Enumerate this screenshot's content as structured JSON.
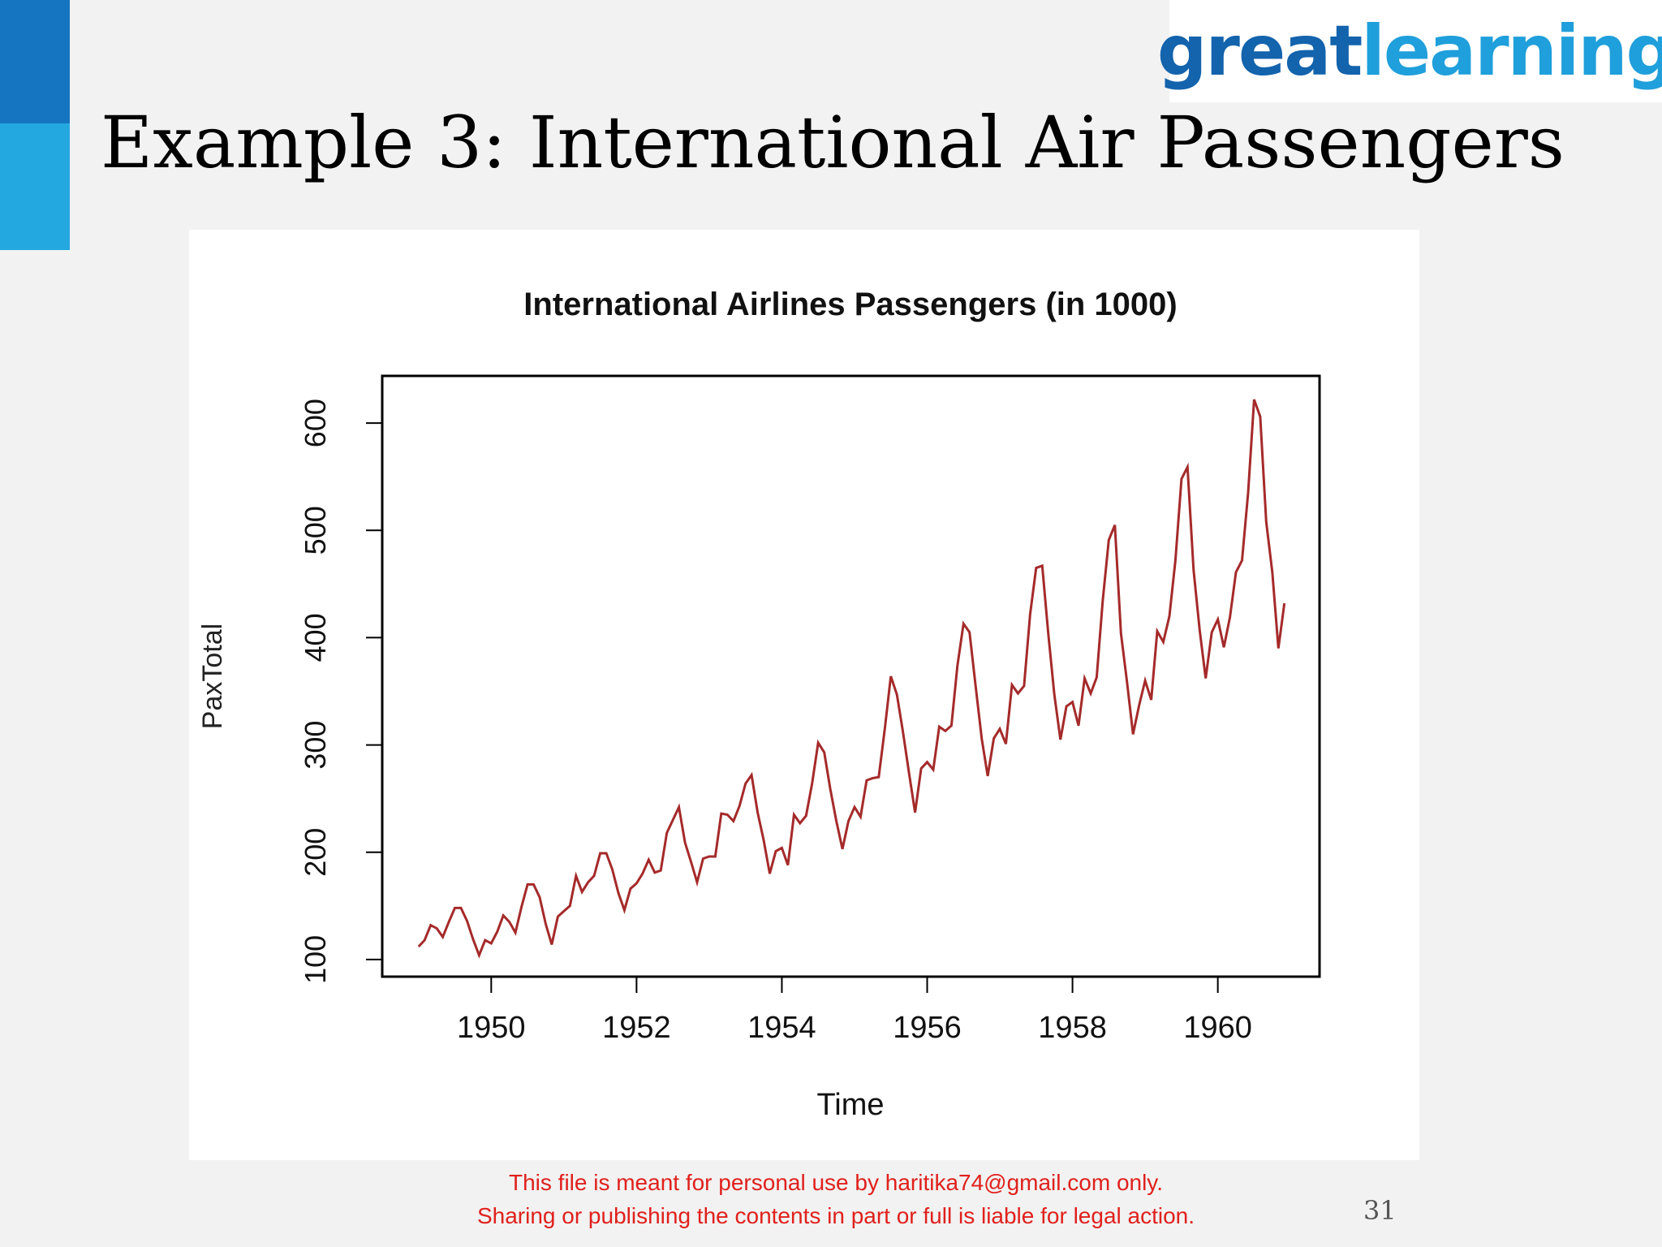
{
  "slide": {
    "title": "Example 3: International Air Passengers",
    "page_number": "31"
  },
  "logo": {
    "part1": "great",
    "part2": "learning"
  },
  "footer": {
    "line1": "This file is meant for personal use by haritika74@gmail.com only.",
    "line2": "Sharing or publishing the contents in part or full is liable for legal action."
  },
  "colors": {
    "accent_dark": "#1675c0",
    "accent_light": "#24a8e0",
    "series": "#a52a2a",
    "notice": "#e0201c"
  },
  "chart_data": {
    "type": "line",
    "title": "International Airlines Passengers (in 1000)",
    "xlabel": "Time",
    "ylabel": "PaxTotal",
    "xlim": [
      1948.5,
      1961.4
    ],
    "ylim": [
      84,
      644
    ],
    "xticks": [
      1950,
      1952,
      1954,
      1956,
      1958,
      1960
    ],
    "yticks": [
      100,
      200,
      300,
      400,
      500,
      600
    ],
    "grid": false,
    "legend": "none",
    "x_start": "Jan 1949",
    "frequency": "monthly",
    "series": [
      {
        "values": [
          112,
          118,
          132,
          129,
          121,
          135,
          148,
          148,
          136,
          119,
          104,
          118,
          115,
          126,
          141,
          135,
          125,
          149,
          170,
          170,
          158,
          133,
          114,
          140,
          145,
          150,
          178,
          163,
          172,
          178,
          199,
          199,
          184,
          162,
          146,
          166,
          171,
          180,
          193,
          181,
          183,
          218,
          230,
          242,
          209,
          191,
          172,
          194,
          196,
          196,
          236,
          235,
          229,
          243,
          264,
          272,
          237,
          211,
          180,
          201,
          204,
          188,
          235,
          227,
          234,
          264,
          302,
          293,
          259,
          229,
          203,
          229,
          242,
          233,
          267,
          269,
          270,
          315,
          364,
          347,
          312,
          274,
          237,
          278,
          284,
          277,
          317,
          313,
          318,
          374,
          413,
          405,
          355,
          306,
          271,
          306,
          315,
          301,
          356,
          348,
          355,
          422,
          465,
          467,
          404,
          347,
          305,
          336,
          340,
          318,
          362,
          348,
          363,
          435,
          491,
          505,
          404,
          359,
          310,
          337,
          360,
          342,
          406,
          396,
          420,
          472,
          548,
          559,
          463,
          407,
          362,
          405,
          417,
          391,
          419,
          461,
          472,
          535,
          622,
          606,
          508,
          461,
          390,
          432
        ]
      }
    ]
  }
}
